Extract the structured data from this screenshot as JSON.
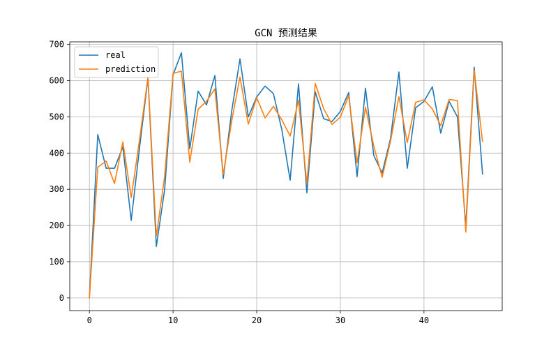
{
  "chart_data": {
    "type": "line",
    "title": "GCN 预测结果",
    "xlabel": "",
    "ylabel": "",
    "grid": true,
    "legend_position": "top-left",
    "xlim": [
      -2.35,
      49.35
    ],
    "ylim": [
      -35,
      707
    ],
    "x_ticks": [
      0,
      10,
      20,
      30,
      40
    ],
    "y_ticks": [
      0,
      100,
      200,
      300,
      400,
      500,
      600,
      700
    ],
    "x": [
      0,
      1,
      2,
      3,
      4,
      5,
      6,
      7,
      8,
      9,
      10,
      11,
      12,
      13,
      14,
      15,
      16,
      17,
      18,
      19,
      20,
      21,
      22,
      23,
      24,
      25,
      26,
      27,
      28,
      29,
      30,
      31,
      32,
      33,
      34,
      35,
      36,
      37,
      38,
      39,
      40,
      41,
      42,
      43,
      44,
      45,
      46,
      47
    ],
    "series": [
      {
        "name": "real",
        "color": "#1f77b4",
        "values": [
          0,
          451,
          358,
          358,
          417,
          214,
          416,
          607,
          142,
          300,
          616,
          677,
          412,
          571,
          533,
          614,
          330,
          514,
          660,
          500,
          555,
          585,
          564,
          465,
          325,
          591,
          290,
          569,
          495,
          487,
          515,
          567,
          335,
          579,
          393,
          345,
          440,
          624,
          358,
          525,
          543,
          583,
          455,
          543,
          500,
          197,
          637,
          342
        ]
      },
      {
        "name": "prediction",
        "color": "#ff7f0e",
        "values": [
          0,
          361,
          378,
          316,
          431,
          277,
          438,
          610,
          170,
          337,
          620,
          626,
          375,
          521,
          543,
          577,
          341,
          487,
          610,
          480,
          553,
          497,
          529,
          492,
          447,
          546,
          316,
          592,
          523,
          479,
          499,
          558,
          373,
          527,
          419,
          333,
          433,
          556,
          429,
          540,
          547,
          522,
          476,
          548,
          545,
          182,
          628,
          432
        ]
      }
    ]
  }
}
